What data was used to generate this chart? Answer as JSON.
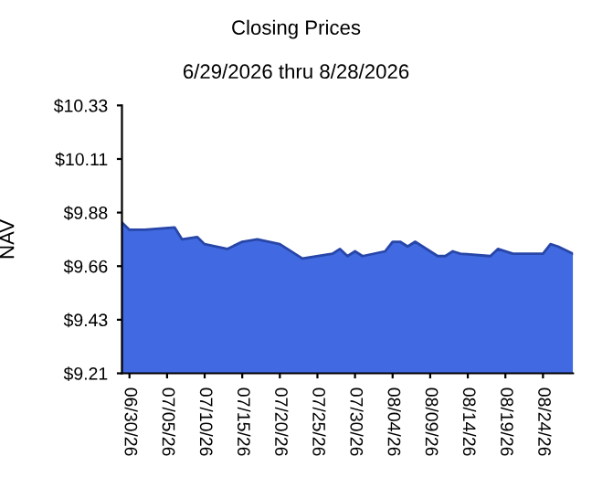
{
  "chart_data": {
    "type": "area",
    "title": "Closing Prices",
    "subtitle": "6/29/2026 thru 8/28/2026",
    "ylabel": "NAV",
    "x": [
      "2026-06-29",
      "2026-06-30",
      "2026-07-02",
      "2026-07-06",
      "2026-07-07",
      "2026-07-09",
      "2026-07-10",
      "2026-07-13",
      "2026-07-15",
      "2026-07-17",
      "2026-07-20",
      "2026-07-21",
      "2026-07-23",
      "2026-07-27",
      "2026-07-28",
      "2026-07-29",
      "2026-07-30",
      "2026-07-31",
      "2026-08-03",
      "2026-08-04",
      "2026-08-05",
      "2026-08-06",
      "2026-08-07",
      "2026-08-10",
      "2026-08-11",
      "2026-08-12",
      "2026-08-13",
      "2026-08-17",
      "2026-08-18",
      "2026-08-20",
      "2026-08-24",
      "2026-08-25",
      "2026-08-26",
      "2026-08-28"
    ],
    "series": [
      {
        "color": "#4169e1",
        "values": [
          9.84,
          9.81,
          9.81,
          9.82,
          9.77,
          9.78,
          9.75,
          9.73,
          9.76,
          9.77,
          9.75,
          9.73,
          9.69,
          9.71,
          9.73,
          9.7,
          9.72,
          9.7,
          9.72,
          9.76,
          9.76,
          9.74,
          9.76,
          9.7,
          9.7,
          9.72,
          9.71,
          9.7,
          9.73,
          9.71,
          9.71,
          9.75,
          9.74,
          9.71
        ]
      }
    ],
    "xlim": [
      "2026-06-29",
      "2026-08-28"
    ],
    "xticks": [
      {
        "value": "2026-06-30",
        "label": "06/30/26"
      },
      {
        "value": "2026-07-05",
        "label": "07/05/26"
      },
      {
        "value": "2026-07-10",
        "label": "07/10/26"
      },
      {
        "value": "2026-07-15",
        "label": "07/15/26"
      },
      {
        "value": "2026-07-20",
        "label": "07/20/26"
      },
      {
        "value": "2026-07-25",
        "label": "07/25/26"
      },
      {
        "value": "2026-07-30",
        "label": "07/30/26"
      },
      {
        "value": "2026-08-04",
        "label": "08/04/26"
      },
      {
        "value": "2026-08-09",
        "label": "08/09/26"
      },
      {
        "value": "2026-08-14",
        "label": "08/14/26"
      },
      {
        "value": "2026-08-19",
        "label": "08/19/26"
      },
      {
        "value": "2026-08-24",
        "label": "08/24/26"
      }
    ],
    "ylim": [
      9.21,
      10.33
    ],
    "yticks": [
      {
        "value": 9.21,
        "label": "$9.21"
      },
      {
        "value": 9.434,
        "label": "$9.43"
      },
      {
        "value": 9.658,
        "label": "$9.66"
      },
      {
        "value": 9.882,
        "label": "$9.88"
      },
      {
        "value": 10.106,
        "label": "$10.11"
      },
      {
        "value": 10.33,
        "label": "$10.33"
      }
    ],
    "grid": false,
    "legend": false
  }
}
